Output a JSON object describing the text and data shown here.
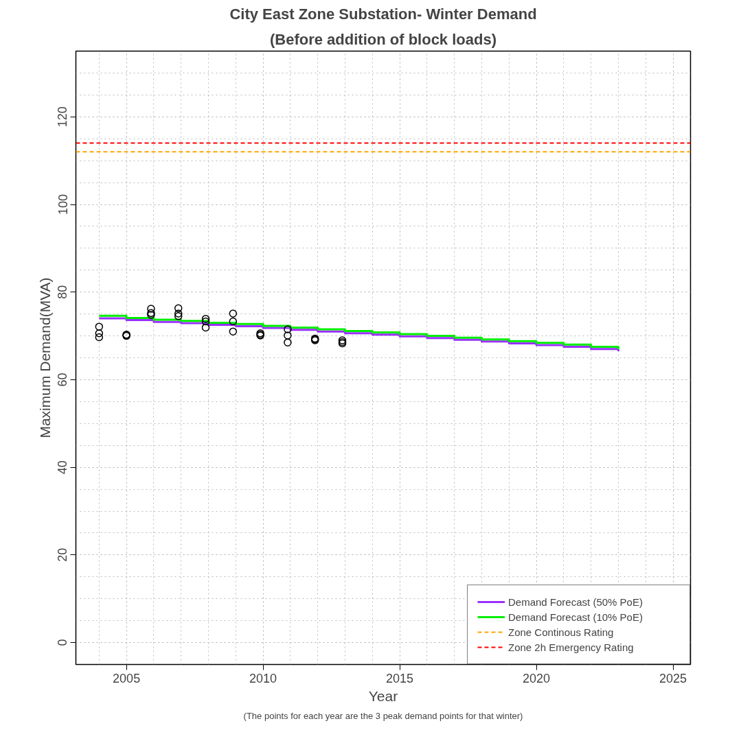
{
  "chart_data": {
    "type": "step",
    "title": "City East Zone Substation- Winter Demand",
    "subtitle": "(Before addition of block loads)",
    "xlabel": "Year",
    "ylabel": "Maximum Demand(MVA)",
    "xlim": [
      2003.15,
      2025.64
    ],
    "xticks": [
      2005,
      2010,
      2015,
      2020,
      2025
    ],
    "ylim": [
      -5,
      135
    ],
    "yticks": [
      0,
      20,
      40,
      60,
      80,
      100,
      120
    ],
    "grid": true,
    "legend": "bottom right",
    "line_style": "solid",
    "series": [
      {
        "name": "Demand Forecast (50% PoE)",
        "color": "#9b30ff",
        "x": [
          2004,
          2005,
          2006,
          2007,
          2008,
          2009,
          2010,
          2011,
          2012,
          2013,
          2014,
          2015,
          2016,
          2017,
          2018,
          2019,
          2020,
          2021,
          2022,
          2023
        ],
        "values": [
          74.0,
          73.6,
          73.2,
          72.9,
          72.5,
          72.2,
          71.8,
          71.4,
          71.0,
          70.6,
          70.3,
          69.9,
          69.5,
          69.1,
          68.7,
          68.3,
          67.9,
          67.5,
          67.0,
          66.5
        ]
      },
      {
        "name": "Demand Forecast (10% PoE)",
        "color": "#00ee00",
        "x": [
          2004,
          2005,
          2006,
          2007,
          2008,
          2009,
          2010,
          2011,
          2012,
          2013,
          2014,
          2015,
          2016,
          2017,
          2018,
          2019,
          2020,
          2021,
          2022,
          2023
        ],
        "values": [
          74.6,
          74.1,
          73.7,
          73.4,
          73.0,
          72.7,
          72.3,
          71.9,
          71.5,
          71.1,
          70.8,
          70.4,
          70.0,
          69.6,
          69.2,
          68.8,
          68.4,
          68.0,
          67.5,
          66.9
        ]
      },
      {
        "type": "scatter",
        "marker": "circle",
        "color": "#000000",
        "x": [
          2004.0,
          2004.0,
          2004.0,
          2005.0,
          2005.0,
          2005.0,
          2005.9,
          2005.9,
          2005.9,
          2006.9,
          2006.9,
          2006.9,
          2007.9,
          2007.9,
          2007.9,
          2008.9,
          2008.9,
          2008.9,
          2009.9,
          2009.9,
          2009.9,
          2010.9,
          2010.9,
          2010.9,
          2011.9,
          2011.9,
          2011.9,
          2012.9,
          2012.9,
          2012.9
        ],
        "values": [
          72.1,
          70.6,
          69.7,
          70.0,
          70.2,
          70.3,
          76.2,
          75.2,
          74.8,
          76.3,
          75.1,
          74.5,
          73.9,
          73.3,
          71.9,
          75.1,
          73.3,
          71.0,
          70.6,
          70.1,
          70.3,
          71.5,
          70.1,
          68.5,
          69.4,
          69.2,
          69.0,
          69.0,
          68.6,
          68.3
        ]
      }
    ],
    "ref_lines": [
      {
        "axis": "y",
        "value": 112,
        "label": "Zone Continous Rating",
        "color": "#ffa500",
        "line_style": "dashed"
      },
      {
        "axis": "y",
        "value": 114,
        "label": "Zone 2h Emergency Rating",
        "color": "#ff0000",
        "line_style": "dashed"
      }
    ],
    "annotations": [
      "(The points for each year are the 3 peak demand points for that winter)"
    ]
  }
}
